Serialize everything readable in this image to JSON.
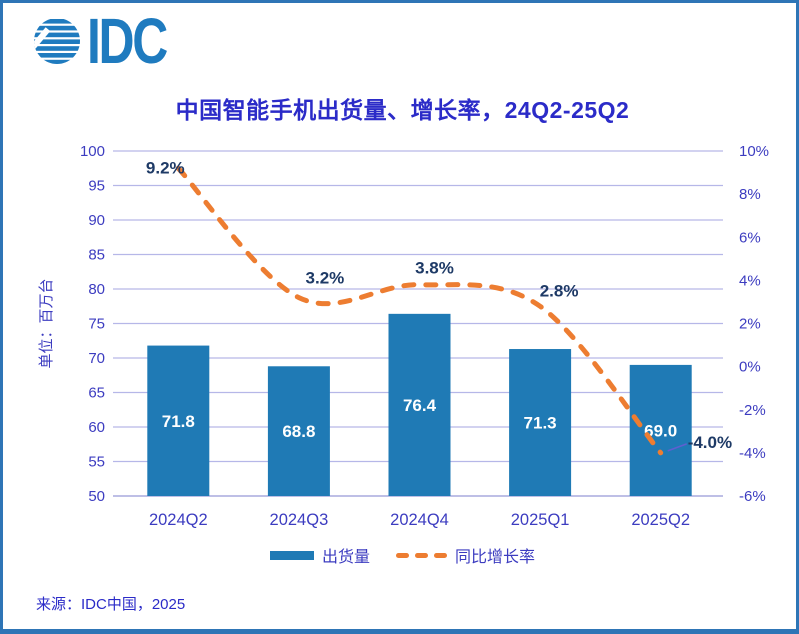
{
  "logo": {
    "text": "IDC"
  },
  "title": "中国智能手机出货量、增长率，24Q2-25Q2",
  "source": "来源：IDC中国，2025",
  "legend": {
    "bar_label": "出货量",
    "line_label": "同比增长率"
  },
  "colors": {
    "bar": "#1F7AB5",
    "line": "#ED7D31",
    "axis_text": "#3C3CC0",
    "grid": "#B6B7E8",
    "baseline": "#9699D6",
    "data_label": "#1E3A66",
    "bar_label": "#FFFFFF",
    "title_text": "#2B2BC8",
    "frame": "#2E75B6",
    "logo": "#1F7BBF",
    "leader": "#5F5FD0"
  },
  "chart_data": {
    "type": "bar",
    "subtype": "combo-bar-line",
    "title": "中国智能手机出货量、增长率，24Q2-25Q2",
    "categories": [
      "2024Q2",
      "2024Q3",
      "2024Q4",
      "2025Q1",
      "2025Q2"
    ],
    "series": [
      {
        "name": "出货量",
        "type": "bar",
        "axis": "left",
        "values": [
          71.8,
          68.8,
          76.4,
          71.3,
          69.0
        ],
        "labels": [
          "71.8",
          "68.8",
          "76.4",
          "71.3",
          "69.0"
        ]
      },
      {
        "name": "同比增长率",
        "type": "line",
        "style": "dashed",
        "axis": "right",
        "values": [
          9.2,
          3.2,
          3.8,
          2.8,
          -4.0
        ],
        "labels": [
          "9.2%",
          "3.2%",
          "3.8%",
          "2.8%",
          "-4.0%"
        ]
      }
    ],
    "left_axis": {
      "title": "单位：百万台",
      "min": 50,
      "max": 100,
      "step": 5,
      "ticks": [
        "50",
        "55",
        "60",
        "65",
        "70",
        "75",
        "80",
        "85",
        "90",
        "95",
        "100"
      ]
    },
    "right_axis": {
      "min": -6,
      "max": 10,
      "step": 2,
      "ticks": [
        "-6%",
        "-4%",
        "-2%",
        "0%",
        "2%",
        "4%",
        "6%",
        "8%",
        "10%"
      ]
    },
    "grid": true,
    "legend_position": "bottom"
  }
}
